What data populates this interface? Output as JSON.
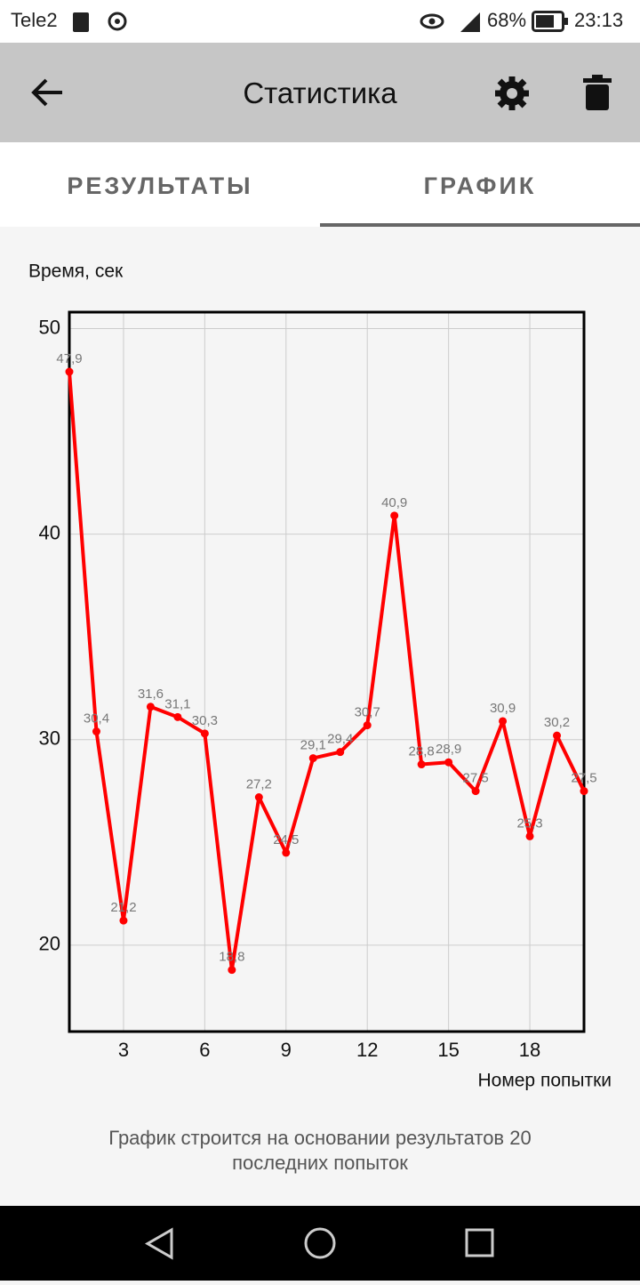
{
  "status_bar": {
    "carrier": "Tele2",
    "battery": "68%",
    "time": "23:13"
  },
  "app_bar": {
    "title": "Статистика"
  },
  "tabs": [
    "РЕЗУЛЬТАТЫ",
    "ГРАФИК"
  ],
  "chart_data": {
    "type": "line",
    "y_label": "Время, сек",
    "x_label": "Номер попытки",
    "x": [
      1,
      2,
      3,
      4,
      5,
      6,
      7,
      8,
      9,
      10,
      11,
      12,
      13,
      14,
      15,
      16,
      17,
      18,
      19,
      20
    ],
    "series": [
      {
        "name": "Время",
        "color": "#ff0000",
        "values": [
          47.9,
          30.4,
          21.2,
          31.6,
          31.1,
          30.3,
          18.8,
          27.2,
          24.5,
          29.1,
          29.4,
          30.7,
          40.9,
          28.8,
          28.9,
          27.5,
          30.9,
          25.3,
          30.2,
          27.5
        ],
        "value_labels": [
          "47,9",
          "30,4",
          "21,2",
          "31,6",
          "31,1",
          "30,3",
          "18,8",
          "27,2",
          "24,5",
          "29,1",
          "29,4",
          "30,7",
          "40,9",
          "28,8",
          "28,9",
          "27,5",
          "30,9",
          "25,3",
          "30,2",
          "27,5"
        ]
      }
    ],
    "xlim": [
      1,
      20
    ],
    "xticks": [
      3,
      6,
      9,
      12,
      15,
      18
    ],
    "ylim": [
      15.8,
      50.8
    ],
    "yticks": [
      20,
      30,
      40,
      50
    ],
    "grid": true
  },
  "footer": "График строится на основании результатов 20 последних попыток"
}
